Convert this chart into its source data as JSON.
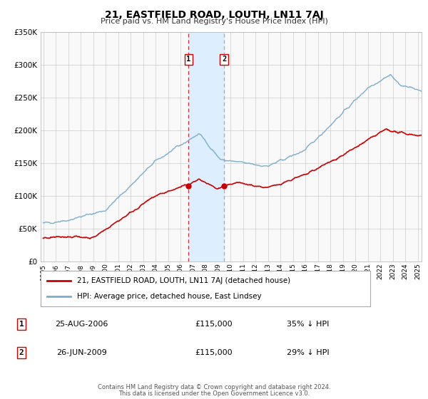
{
  "title": "21, EASTFIELD ROAD, LOUTH, LN11 7AJ",
  "subtitle": "Price paid vs. HM Land Registry's House Price Index (HPI)",
  "x_start": 1995.0,
  "x_end": 2025.3,
  "y_min": 0,
  "y_max": 350000,
  "y_ticks": [
    0,
    50000,
    100000,
    150000,
    200000,
    250000,
    300000,
    350000
  ],
  "y_tick_labels": [
    "£0",
    "£50K",
    "£100K",
    "£150K",
    "£200K",
    "£250K",
    "£300K",
    "£350K"
  ],
  "x_ticks": [
    1995,
    1996,
    1997,
    1998,
    1999,
    2000,
    2001,
    2002,
    2003,
    2004,
    2005,
    2006,
    2007,
    2008,
    2009,
    2010,
    2011,
    2012,
    2013,
    2014,
    2015,
    2016,
    2017,
    2018,
    2019,
    2020,
    2021,
    2022,
    2023,
    2024,
    2025
  ],
  "sale1_date": 2006.648,
  "sale1_price": 115000,
  "sale1_label": "1",
  "sale1_text": "25-AUG-2006",
  "sale1_amount": "£115,000",
  "sale1_hpi": "35% ↓ HPI",
  "sale2_date": 2009.479,
  "sale2_price": 115000,
  "sale2_label": "2",
  "sale2_text": "26-JUN-2009",
  "sale2_amount": "£115,000",
  "sale2_hpi": "29% ↓ HPI",
  "shade_start": 2006.648,
  "shade_end": 2009.479,
  "property_line_color": "#cc0000",
  "hpi_line_color": "#7aadcc",
  "sale_marker_color": "#cc0000",
  "shade_color": "#ddeeff",
  "grid_color": "#cccccc",
  "chart_bg": "#f9f9f9",
  "legend_label1": "21, EASTFIELD ROAD, LOUTH, LN11 7AJ (detached house)",
  "legend_label2": "HPI: Average price, detached house, East Lindsey",
  "footer1": "Contains HM Land Registry data © Crown copyright and database right 2024.",
  "footer2": "This data is licensed under the Open Government Licence v3.0."
}
